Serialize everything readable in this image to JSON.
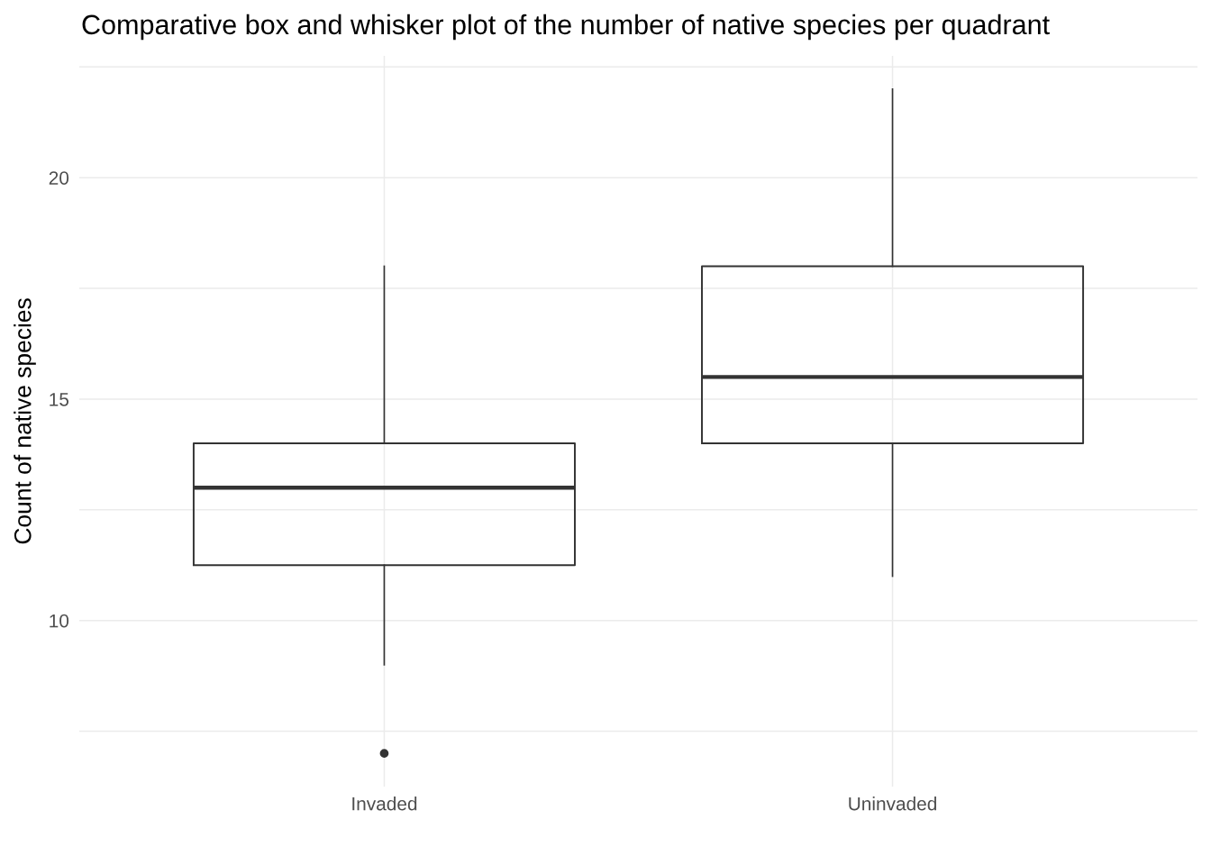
{
  "chart_data": {
    "type": "box",
    "title": "Comparative box and whisker plot of the number of native species per quadrant",
    "ylabel": "Count of native species",
    "categories": [
      "Invaded",
      "Uninvaded"
    ],
    "boxes": [
      {
        "low": 9,
        "q1": 11.25,
        "median": 13,
        "q3": 14,
        "high": 18,
        "outliers": [
          7
        ]
      },
      {
        "low": 11,
        "q1": 14,
        "median": 15.5,
        "q3": 18,
        "high": 22
      }
    ],
    "ylim": [
      6.25,
      22.75
    ],
    "yticks": [
      {
        "value": 7.5,
        "label": null
      },
      10,
      {
        "value": 12.5,
        "label": null
      },
      15,
      {
        "value": 17.5,
        "label": null
      },
      20,
      {
        "value": 22.5,
        "label": null
      }
    ],
    "grid": true,
    "legend": false
  }
}
